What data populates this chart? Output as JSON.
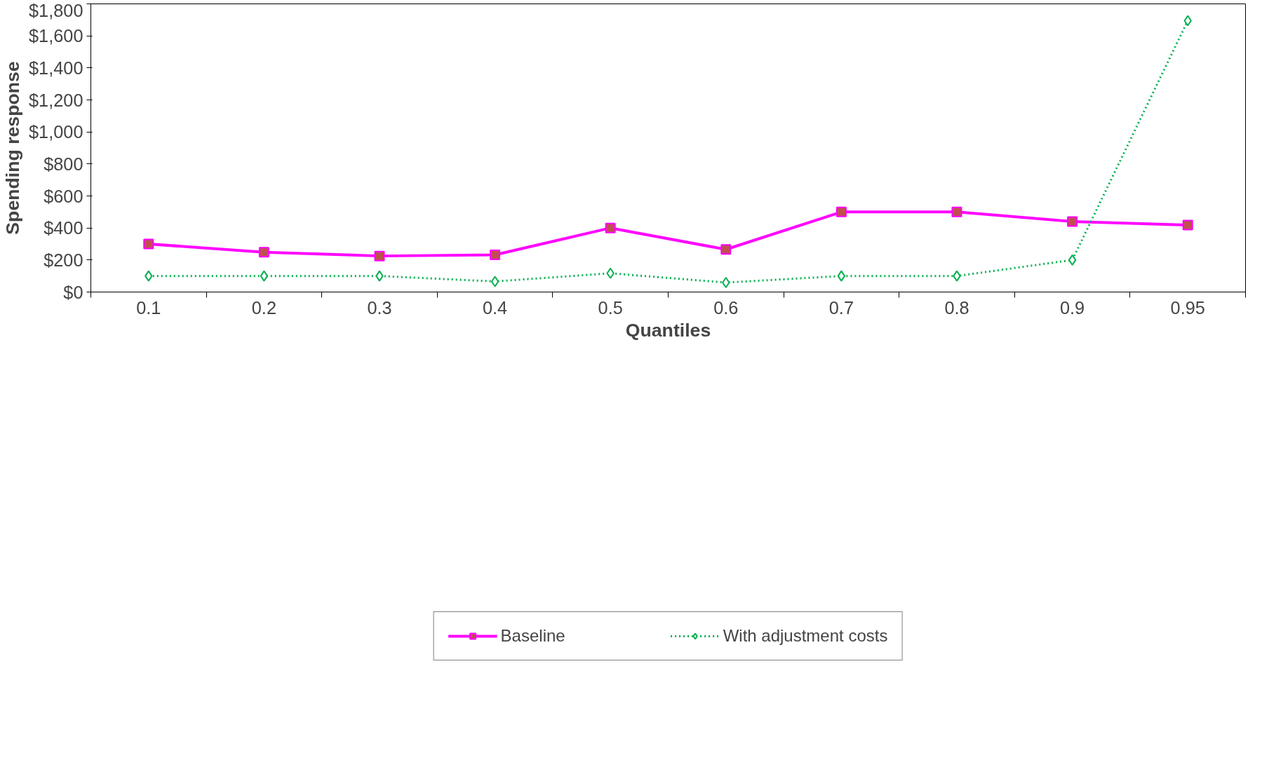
{
  "chart_data": {
    "type": "line",
    "xlabel": "Quantiles",
    "ylabel": "Spending response",
    "categories": [
      "0.1",
      "0.2",
      "0.3",
      "0.4",
      "0.5",
      "0.6",
      "0.7",
      "0.8",
      "0.9",
      "0.95"
    ],
    "ylim": [
      0,
      1800
    ],
    "yticks": [
      {
        "value": 0,
        "label": "$0"
      },
      {
        "value": 200,
        "label": "$200"
      },
      {
        "value": 400,
        "label": "$400"
      },
      {
        "value": 600,
        "label": "$600"
      },
      {
        "value": 800,
        "label": "$800"
      },
      {
        "value": 1000,
        "label": "$1,000"
      },
      {
        "value": 1200,
        "label": "$1,200"
      },
      {
        "value": 1400,
        "label": "$1,400"
      },
      {
        "value": 1600,
        "label": "$1,600"
      },
      {
        "value": 1800,
        "label": "$1,800"
      }
    ],
    "grid": false,
    "legend": "bottom",
    "series": [
      {
        "name": "Baseline",
        "color": "#ff00ff",
        "marker": "square",
        "line_style": "solid",
        "values": [
          300,
          249,
          225,
          232,
          400,
          266,
          500,
          500,
          440,
          418
        ]
      },
      {
        "name": "With adjustment costs",
        "color": "#00b050",
        "marker": "diamond",
        "line_style": "dotted",
        "values": [
          100,
          100,
          100,
          66,
          117,
          59,
          100,
          100,
          200,
          1695
        ]
      }
    ]
  }
}
